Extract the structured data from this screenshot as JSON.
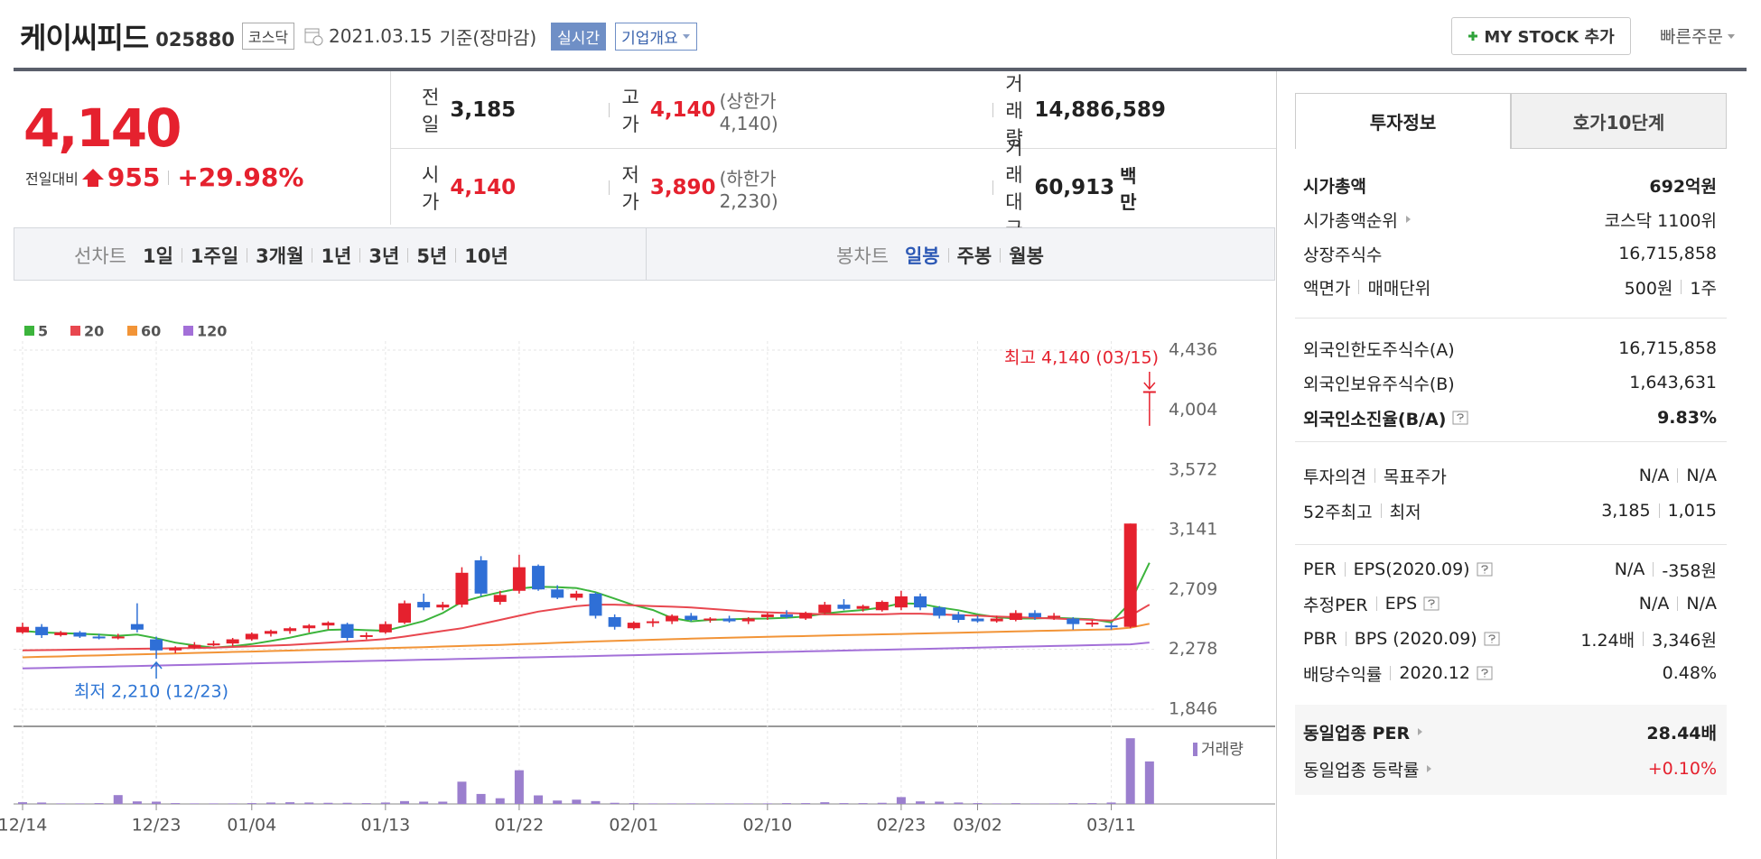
{
  "header": {
    "name": "케이씨피드",
    "code": "025880",
    "market": "코스닥",
    "date": "2021.03.15",
    "basis": "기준(장마감)",
    "buttons": [
      "실시간",
      "기업개요"
    ],
    "mystock": "MY STOCK 추가",
    "quick_order": "빠른주문"
  },
  "price_box": {
    "price": "4,140",
    "change_label": "전일대비",
    "change": "955",
    "change_pct": "+29.98%"
  },
  "quote": {
    "rows": [
      [
        {
          "label": "전일",
          "value": "3,185"
        },
        {
          "label": "고가",
          "value": "4,140",
          "note": "(상한가 4,140)"
        },
        {
          "label": "거래량",
          "value": "14,886,589"
        }
      ],
      [
        {
          "label": "시가",
          "value": "4,140"
        },
        {
          "label": "저가",
          "value": "3,890",
          "note": "(하한가 2,230)"
        },
        {
          "label": "거래대금",
          "value": "60,913",
          "unit": "백만"
        }
      ]
    ]
  },
  "periods": {
    "line_chart_label": "선차트",
    "line_periods": [
      "1일",
      "1주일",
      "3개월",
      "1년",
      "3년",
      "5년",
      "10년"
    ],
    "candle_chart_label": "봉차트",
    "candle_periods": [
      "일봉",
      "주봉",
      "월봉"
    ],
    "active_candle_period": 0
  },
  "chart_data": {
    "type": "candlestick",
    "categories": [
      "12/14",
      null,
      null,
      null,
      null,
      null,
      null,
      "12/23",
      null,
      null,
      null,
      null,
      "01/04",
      null,
      null,
      null,
      null,
      null,
      null,
      "01/13",
      null,
      null,
      null,
      null,
      null,
      null,
      "01/22",
      null,
      null,
      null,
      null,
      null,
      "02/01",
      null,
      null,
      null,
      null,
      null,
      null,
      "02/10",
      null,
      null,
      null,
      null,
      null,
      null,
      "02/23",
      null,
      null,
      null,
      "03/02",
      null,
      null,
      null,
      null,
      null,
      null,
      "03/11",
      null,
      null
    ],
    "candles": [
      [
        2400,
        2470,
        2390,
        2440
      ],
      [
        2440,
        2460,
        2360,
        2380
      ],
      [
        2380,
        2410,
        2370,
        2400
      ],
      [
        2400,
        2410,
        2360,
        2370
      ],
      [
        2370,
        2390,
        2350,
        2360
      ],
      [
        2360,
        2390,
        2350,
        2370
      ],
      [
        2460,
        2610,
        2400,
        2420
      ],
      [
        2350,
        2370,
        2210,
        2270
      ],
      [
        2270,
        2300,
        2250,
        2290
      ],
      [
        2290,
        2330,
        2280,
        2310
      ],
      [
        2310,
        2340,
        2300,
        2320
      ],
      [
        2320,
        2360,
        2300,
        2350
      ],
      [
        2350,
        2400,
        2340,
        2390
      ],
      [
        2390,
        2420,
        2370,
        2410
      ],
      [
        2410,
        2440,
        2390,
        2430
      ],
      [
        2430,
        2460,
        2400,
        2450
      ],
      [
        2450,
        2480,
        2420,
        2470
      ],
      [
        2460,
        2470,
        2340,
        2360
      ],
      [
        2370,
        2400,
        2350,
        2380
      ],
      [
        2400,
        2480,
        2390,
        2460
      ],
      [
        2470,
        2630,
        2460,
        2610
      ],
      [
        2620,
        2680,
        2560,
        2580
      ],
      [
        2580,
        2620,
        2560,
        2600
      ],
      [
        2600,
        2870,
        2580,
        2830
      ],
      [
        2920,
        2950,
        2660,
        2680
      ],
      [
        2620,
        2700,
        2600,
        2670
      ],
      [
        2700,
        2960,
        2680,
        2870
      ],
      [
        2880,
        2890,
        2700,
        2710
      ],
      [
        2710,
        2740,
        2640,
        2650
      ],
      [
        2650,
        2700,
        2630,
        2680
      ],
      [
        2680,
        2690,
        2500,
        2520
      ],
      [
        2510,
        2530,
        2420,
        2440
      ],
      [
        2430,
        2480,
        2420,
        2470
      ],
      [
        2470,
        2500,
        2440,
        2480
      ],
      [
        2480,
        2530,
        2460,
        2520
      ],
      [
        2520,
        2540,
        2480,
        2490
      ],
      [
        2490,
        2510,
        2470,
        2500
      ],
      [
        2500,
        2520,
        2470,
        2480
      ],
      [
        2480,
        2510,
        2460,
        2500
      ],
      [
        2510,
        2540,
        2490,
        2530
      ],
      [
        2530,
        2560,
        2500,
        2510
      ],
      [
        2500,
        2550,
        2490,
        2540
      ],
      [
        2540,
        2620,
        2530,
        2600
      ],
      [
        2600,
        2640,
        2560,
        2570
      ],
      [
        2570,
        2600,
        2550,
        2590
      ],
      [
        2560,
        2630,
        2550,
        2620
      ],
      [
        2580,
        2700,
        2560,
        2660
      ],
      [
        2660,
        2680,
        2560,
        2580
      ],
      [
        2580,
        2590,
        2500,
        2520
      ],
      [
        2530,
        2550,
        2470,
        2490
      ],
      [
        2500,
        2520,
        2470,
        2480
      ],
      [
        2480,
        2520,
        2470,
        2500
      ],
      [
        2490,
        2560,
        2480,
        2540
      ],
      [
        2540,
        2560,
        2490,
        2510
      ],
      [
        2510,
        2540,
        2490,
        2520
      ],
      [
        2500,
        2510,
        2420,
        2460
      ],
      [
        2460,
        2490,
        2440,
        2470
      ],
      [
        2450,
        2470,
        2420,
        2440
      ],
      [
        2440,
        3185,
        2430,
        3185
      ],
      [
        4140,
        4140,
        3890,
        4140
      ]
    ],
    "up_color": "#e5212e",
    "down_color": "#2f6fd6",
    "series": [
      {
        "name": "5",
        "color": "#3cb43c",
        "values": [
          2410,
          2400,
          2395,
          2390,
          2385,
          2376,
          2384,
          2358,
          2326,
          2306,
          2290,
          2300,
          2316,
          2338,
          2362,
          2392,
          2418,
          2422,
          2416,
          2412,
          2446,
          2482,
          2540,
          2620,
          2658,
          2690,
          2716,
          2730,
          2726,
          2720,
          2690,
          2644,
          2596,
          2562,
          2504,
          2480,
          2490,
          2494,
          2498,
          2500,
          2506,
          2514,
          2536,
          2550,
          2562,
          2580,
          2610,
          2606,
          2580,
          2560,
          2530,
          2510,
          2500,
          2500,
          2506,
          2500,
          2494,
          2472,
          2616,
          2902
        ]
      },
      {
        "name": "20",
        "color": "#e8474f",
        "values": [
          2270,
          2272,
          2274,
          2276,
          2278,
          2280,
          2282,
          2284,
          2286,
          2288,
          2290,
          2295,
          2300,
          2305,
          2310,
          2318,
          2326,
          2334,
          2342,
          2352,
          2370,
          2390,
          2410,
          2430,
          2460,
          2490,
          2520,
          2550,
          2570,
          2590,
          2600,
          2600,
          2595,
          2590,
          2585,
          2580,
          2570,
          2560,
          2550,
          2545,
          2540,
          2535,
          2530,
          2530,
          2530,
          2530,
          2535,
          2535,
          2530,
          2525,
          2520,
          2515,
          2510,
          2505,
          2500,
          2495,
          2490,
          2485,
          2520,
          2600
        ]
      },
      {
        "name": "60",
        "color": "#f29437",
        "values": [
          2220,
          2224,
          2227,
          2231,
          2234,
          2238,
          2241,
          2245,
          2248,
          2252,
          2255,
          2259,
          2262,
          2266,
          2269,
          2273,
          2276,
          2280,
          2283,
          2287,
          2290,
          2294,
          2298,
          2302,
          2306,
          2310,
          2315,
          2320,
          2325,
          2330,
          2335,
          2339,
          2343,
          2347,
          2351,
          2355,
          2358,
          2362,
          2365,
          2368,
          2371,
          2374,
          2377,
          2380,
          2383,
          2386,
          2389,
          2392,
          2395,
          2398,
          2401,
          2404,
          2407,
          2410,
          2413,
          2416,
          2419,
          2422,
          2434,
          2462
        ]
      },
      {
        "name": "120",
        "color": "#a370d8",
        "values": [
          2140,
          2143,
          2146,
          2149,
          2152,
          2155,
          2158,
          2161,
          2164,
          2167,
          2170,
          2173,
          2176,
          2179,
          2182,
          2185,
          2188,
          2191,
          2194,
          2197,
          2200,
          2203,
          2206,
          2209,
          2212,
          2215,
          2218,
          2221,
          2224,
          2227,
          2230,
          2233,
          2236,
          2239,
          2242,
          2245,
          2248,
          2251,
          2254,
          2257,
          2260,
          2263,
          2266,
          2269,
          2272,
          2275,
          2278,
          2281,
          2284,
          2287,
          2290,
          2293,
          2296,
          2299,
          2302,
          2305,
          2308,
          2311,
          2314,
          2327
        ]
      }
    ],
    "ylim": [
      1846,
      4436
    ],
    "yticks": [
      {
        "value": 1846,
        "label": "1,846"
      },
      {
        "value": 2278,
        "label": "2,278"
      },
      {
        "value": 2709,
        "label": "2,709"
      },
      {
        "value": 3141,
        "label": "3,141"
      },
      {
        "value": 3572,
        "label": "3,572"
      },
      {
        "value": 4004,
        "label": "4,004"
      },
      {
        "value": 4436,
        "label": "4,436"
      }
    ],
    "grid": true,
    "volume": {
      "name": "거래량",
      "color": "#9b7fce",
      "vlim": [
        0,
        24000000
      ],
      "values": [
        600000,
        500000,
        200000,
        200000,
        300000,
        3100000,
        900000,
        800000,
        300000,
        200000,
        200000,
        200000,
        300000,
        500000,
        600000,
        500000,
        400000,
        400000,
        300000,
        500000,
        1000000,
        800000,
        800000,
        7800000,
        3500000,
        2000000,
        11800000,
        3000000,
        1200000,
        1500000,
        1000000,
        400000,
        300000,
        200000,
        200000,
        200000,
        200000,
        200000,
        200000,
        200000,
        300000,
        300000,
        600000,
        300000,
        300000,
        400000,
        2400000,
        900000,
        800000,
        500000,
        300000,
        200000,
        300000,
        200000,
        200000,
        300000,
        300000,
        500000,
        23000000,
        14886589
      ]
    },
    "annotations": [
      {
        "text": "최고 4,140 (03/15)",
        "color": "#e5212e"
      },
      {
        "text": "최저 2,210 (12/23)",
        "color": "#2c74d4"
      }
    ]
  },
  "info_panel": {
    "tabs": [
      "투자정보",
      "호가10단계"
    ],
    "active_tab": 0,
    "rows": [
      {
        "label": [
          "시가총액"
        ],
        "value": [
          "692억원"
        ],
        "bold": true
      },
      {
        "label": [
          "시가총액순위"
        ],
        "arrow": true,
        "value": [
          "코스닥 1100위"
        ]
      },
      {
        "label": [
          "상장주식수"
        ],
        "value": [
          "16,715,858"
        ]
      },
      {
        "label": [
          "액면가",
          "매매단위"
        ],
        "value": [
          "500원",
          "1주"
        ]
      },
      {
        "label": [
          "외국인한도주식수(A)"
        ],
        "value": [
          "16,715,858"
        ]
      },
      {
        "label": [
          "외국인보유주식수(B)"
        ],
        "value": [
          "1,643,631"
        ]
      },
      {
        "label": [
          "외국인소진율(B/A)"
        ],
        "help": true,
        "value": [
          "9.83%"
        ],
        "bold": true
      },
      {
        "label": [
          "투자의견",
          "목표주가"
        ],
        "value": [
          "N/A",
          "N/A"
        ]
      },
      {
        "label": [
          "52주최고",
          "최저"
        ],
        "value": [
          "3,185",
          "1,015"
        ]
      },
      {
        "label": [
          "PER",
          "EPS(2020.09)"
        ],
        "help": true,
        "value": [
          "N/A",
          "-358원"
        ]
      },
      {
        "label": [
          "추정PER",
          "EPS"
        ],
        "help": true,
        "value": [
          "N/A",
          "N/A"
        ]
      },
      {
        "label": [
          "PBR",
          "BPS (2020.09)"
        ],
        "help": true,
        "value": [
          "1.24배",
          "3,346원"
        ]
      },
      {
        "label": [
          "배당수익률",
          "2020.12"
        ],
        "help": true,
        "value": [
          "0.48%"
        ]
      },
      {
        "label": [
          "동일업종 PER"
        ],
        "arrow": true,
        "value": [
          "28.44배"
        ],
        "bold": true
      },
      {
        "label": [
          "동일업종 등락률"
        ],
        "arrow": true,
        "value": [
          "+0.10%"
        ],
        "value_color": "#e5212e"
      }
    ]
  }
}
